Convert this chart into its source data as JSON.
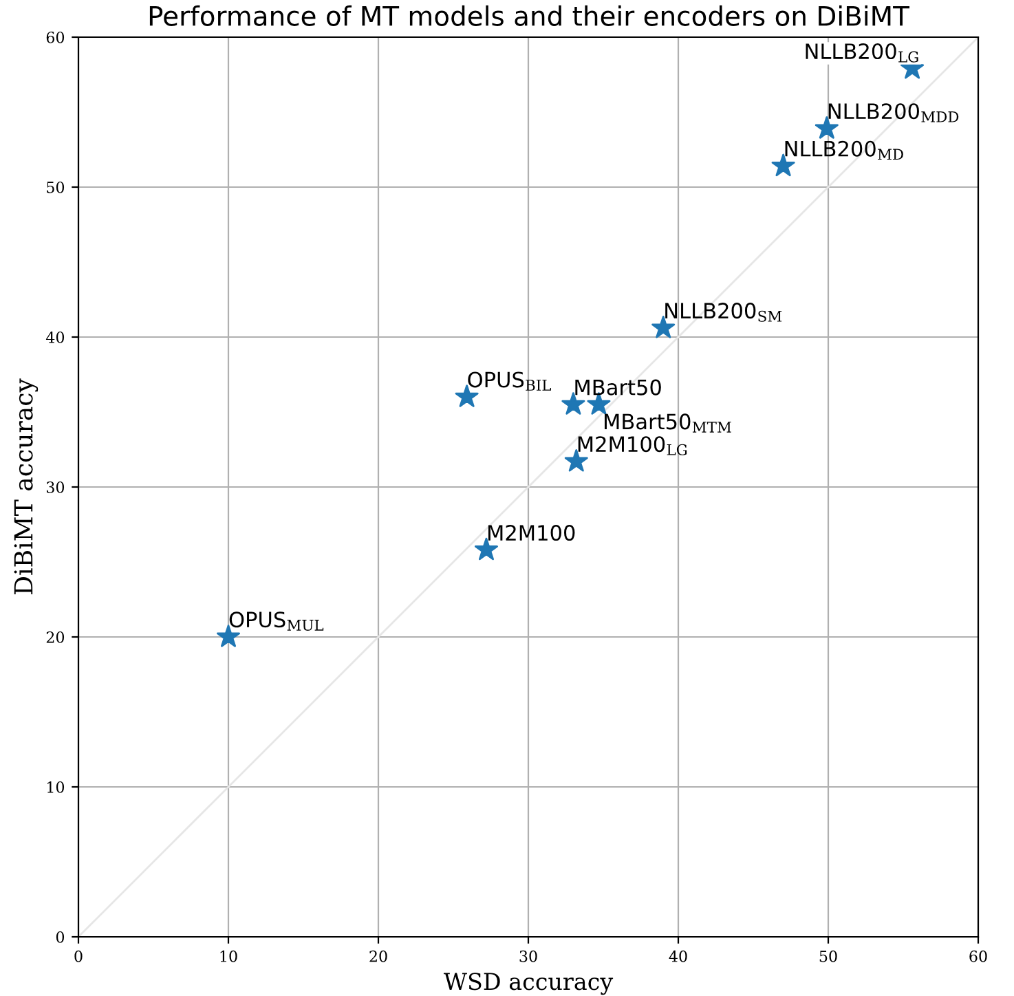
{
  "chart_data": {
    "type": "scatter",
    "title": "Performance of MT models and their encoders on DiBiMT",
    "xlabel": "WSD accuracy",
    "ylabel": "DiBiMT accuracy",
    "x": [
      10,
      27.2,
      33.2,
      33.0,
      34.7,
      25.9,
      39.0,
      47.0,
      49.9,
      55.6
    ],
    "series": [
      {
        "color": "#1f77b4",
        "marker": "star",
        "values": [
          20.0,
          25.8,
          31.7,
          35.5,
          35.5,
          36.0,
          40.6,
          51.4,
          53.9,
          57.9
        ]
      },
      {
        "type": "line",
        "color": "#e6e6e6",
        "marker": "none",
        "x": [
          0,
          60
        ],
        "values": [
          0,
          60
        ]
      }
    ],
    "annotations": [
      {
        "text": "OPUS$_{MUL}$",
        "x": 10,
        "y": 20.0
      },
      {
        "text": "M2M100",
        "x": 27.2,
        "y": 25.8
      },
      {
        "text": "M2M100$_{LG}$",
        "x": 33.2,
        "y": 31.7
      },
      {
        "text": "MBart50",
        "x": 33.0,
        "y": 35.5
      },
      {
        "text": "MBart50$_{MTM}$",
        "x": 34.7,
        "y": 35.5
      },
      {
        "text": "OPUS$_{BIL}$",
        "x": 25.9,
        "y": 36.0
      },
      {
        "text": "NLLB200$_{SM}$",
        "x": 39.0,
        "y": 40.6
      },
      {
        "text": "NLLB200$_{MD}$",
        "x": 47.0,
        "y": 51.4
      },
      {
        "text": "NLLB200$_{MDD}$",
        "x": 49.9,
        "y": 53.9
      },
      {
        "text": "NLLB200$_{LG}$",
        "x": 55.6,
        "y": 57.9
      }
    ],
    "xlim": [
      0,
      60
    ],
    "ylim": [
      0,
      60
    ],
    "xticks": [
      0,
      10,
      20,
      30,
      40,
      50,
      60
    ],
    "yticks": [
      0,
      10,
      20,
      30,
      40,
      50,
      60
    ],
    "grid": true,
    "legend": false
  }
}
